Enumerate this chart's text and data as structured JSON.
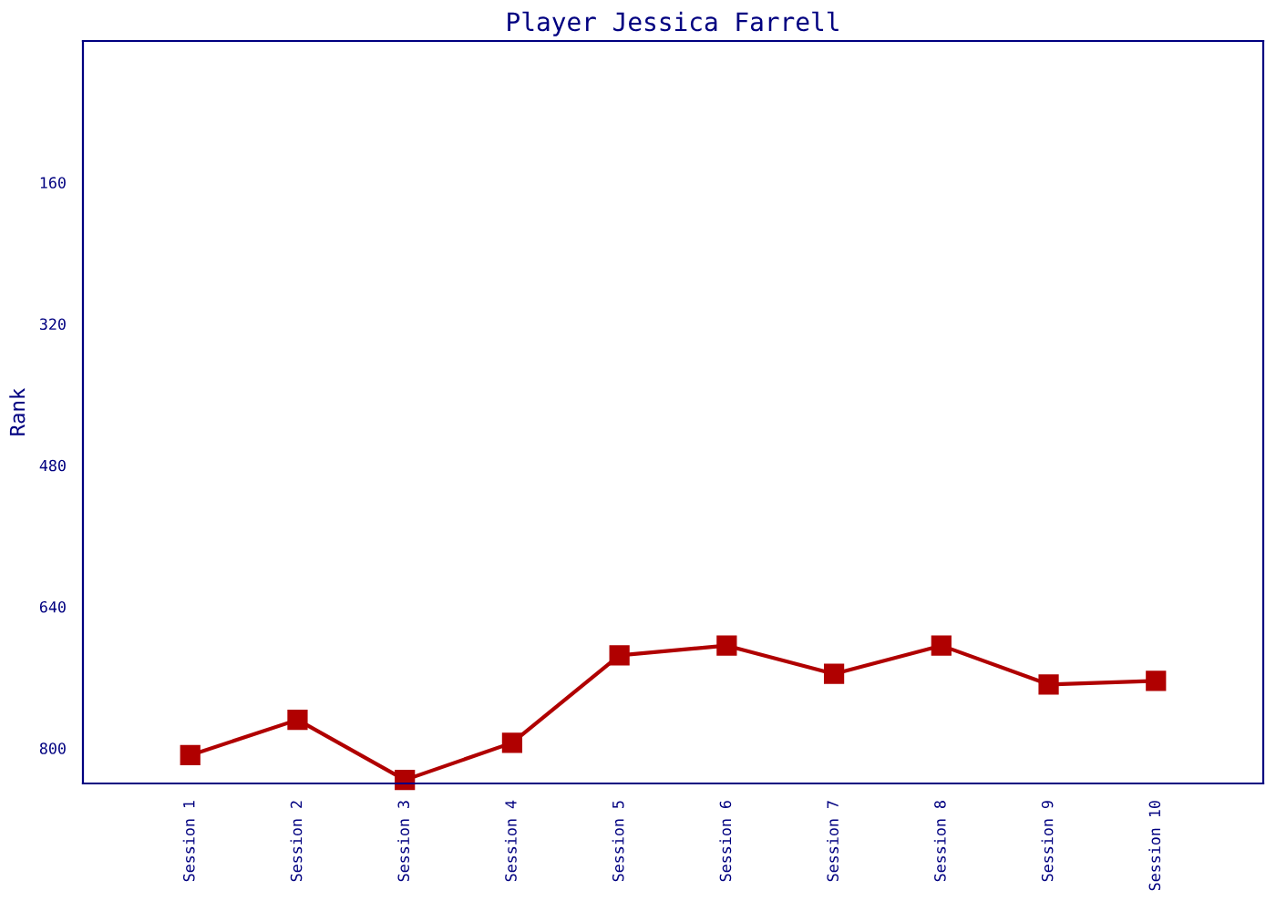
{
  "chart_data": {
    "type": "line",
    "title": "Player Jessica Farrell",
    "ylabel": "Rank",
    "categories": [
      "Session 1",
      "Session 2",
      "Session 3",
      "Session 4",
      "Session 5",
      "Session 6",
      "Session 7",
      "Session 8",
      "Session 9",
      "Session 10"
    ],
    "series": [
      {
        "color": "#b00000",
        "values": [
          808,
          768,
          836,
          794,
          695,
          684,
          716,
          684,
          728,
          724
        ]
      }
    ],
    "ylim": [
      840,
      0
    ],
    "yticks": [
      160,
      320,
      480,
      640,
      800
    ],
    "grid": false,
    "legend": false,
    "marker": "square",
    "line_style": "solid"
  }
}
